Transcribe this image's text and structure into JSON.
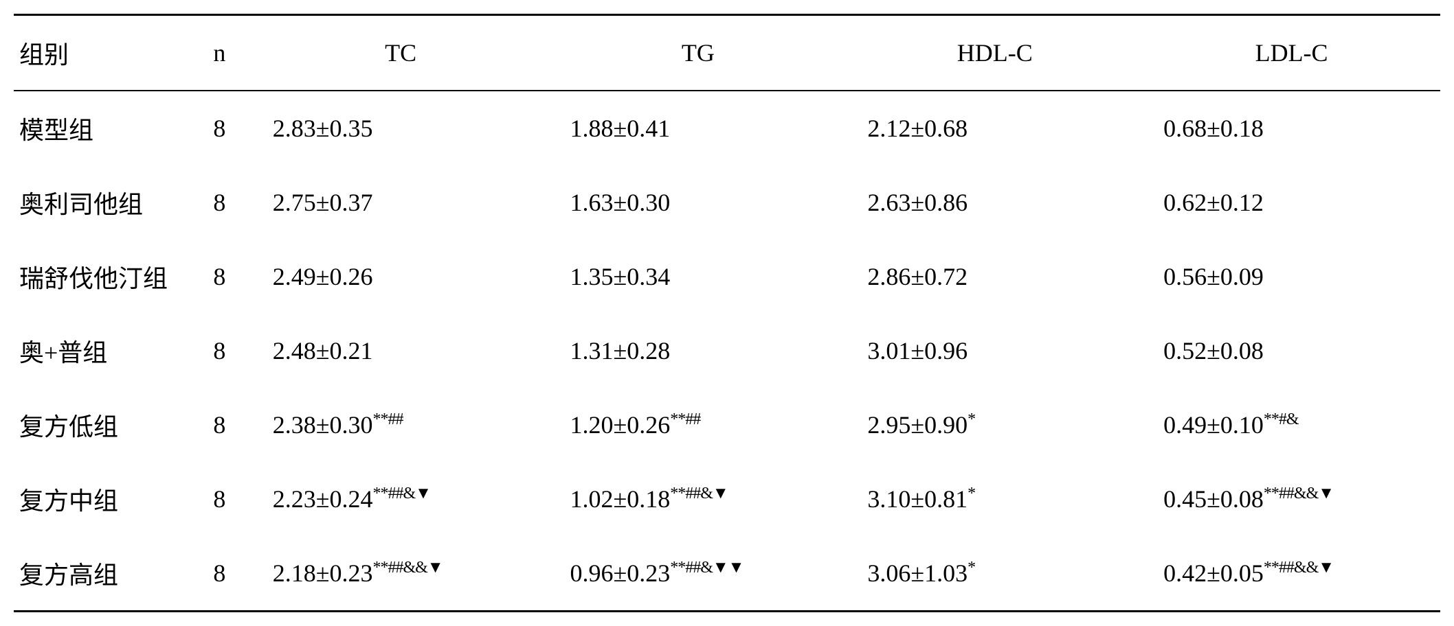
{
  "table": {
    "headers": {
      "group": "组别",
      "n": "n",
      "tc": "TC",
      "tg": "TG",
      "hdlc": "HDL-C",
      "ldlc": "LDL-C"
    },
    "rows": [
      {
        "group": "模型组",
        "n": "8",
        "tc": "2.83±0.35",
        "tc_sup": "",
        "tg": "1.88±0.41",
        "tg_sup": "",
        "hdlc": "2.12±0.68",
        "hdlc_sup": "",
        "ldlc": "0.68±0.18",
        "ldlc_sup": ""
      },
      {
        "group": "奥利司他组",
        "n": "8",
        "tc": "2.75±0.37",
        "tc_sup": "",
        "tg": "1.63±0.30",
        "tg_sup": "",
        "hdlc": "2.63±0.86",
        "hdlc_sup": "",
        "ldlc": "0.62±0.12",
        "ldlc_sup": ""
      },
      {
        "group": "瑞舒伐他汀组",
        "n": "8",
        "tc": "2.49±0.26",
        "tc_sup": "",
        "tg": "1.35±0.34",
        "tg_sup": "",
        "hdlc": "2.86±0.72",
        "hdlc_sup": "",
        "ldlc": "0.56±0.09",
        "ldlc_sup": ""
      },
      {
        "group": "奥+普组",
        "n": "8",
        "tc": "2.48±0.21",
        "tc_sup": "",
        "tg": "1.31±0.28",
        "tg_sup": "",
        "hdlc": "3.01±0.96",
        "hdlc_sup": "",
        "ldlc": "0.52±0.08",
        "ldlc_sup": ""
      },
      {
        "group": "复方低组",
        "n": "8",
        "tc": "2.38±0.30",
        "tc_sup": "**##",
        "tg": "1.20±0.26",
        "tg_sup": "**##",
        "hdlc": "2.95±0.90",
        "hdlc_sup": "*",
        "ldlc": "0.49±0.10",
        "ldlc_sup": "**#&"
      },
      {
        "group": "复方中组",
        "n": "8",
        "tc": "2.23±0.24",
        "tc_sup": "**##&▼",
        "tg": "1.02±0.18",
        "tg_sup": "**##&▼",
        "hdlc": "3.10±0.81",
        "hdlc_sup": "*",
        "ldlc": "0.45±0.08",
        "ldlc_sup": "**##&&▼"
      },
      {
        "group": "复方高组",
        "n": "8",
        "tc": "2.18±0.23",
        "tc_sup": "**##&&▼",
        "tg": "0.96±0.23",
        "tg_sup": "**##&▼▼",
        "hdlc": "3.06±1.03",
        "hdlc_sup": "*",
        "ldlc": "0.42±0.05",
        "ldlc_sup": "**##&&▼"
      }
    ],
    "styling": {
      "font_family": "SimSun / Times New Roman",
      "font_size_pt": 36,
      "sup_font_size_pt": 24,
      "text_color": "#000000",
      "background_color": "#ffffff",
      "border_color": "#000000",
      "top_border_width": 3,
      "header_bottom_border_width": 2,
      "bottom_border_width": 3,
      "row_padding_v": 28,
      "column_widths": {
        "group": 240,
        "n": 80,
        "tc": 420,
        "tg": 420,
        "hdlc": 420,
        "ldlc": 420
      },
      "alignments": {
        "group": "left",
        "n": "center",
        "data_headers": "center",
        "data_cells": "left"
      }
    }
  }
}
